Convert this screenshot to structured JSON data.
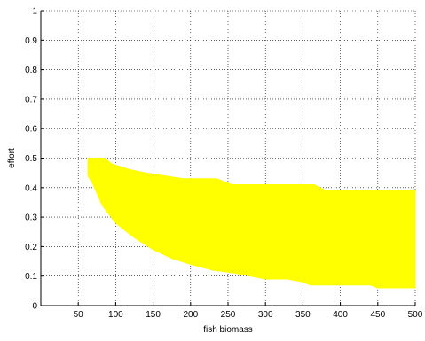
{
  "chart_data": {
    "type": "area",
    "xlabel": "fish biomass",
    "ylabel": "effort",
    "xlim": [
      0,
      500
    ],
    "ylim": [
      0,
      1
    ],
    "xticks": [
      50,
      100,
      150,
      200,
      250,
      300,
      350,
      400,
      450,
      500
    ],
    "yticks": [
      0,
      0.1,
      0.2,
      0.3,
      0.4,
      0.5,
      0.6,
      0.7,
      0.8,
      0.9,
      1
    ],
    "grid": true,
    "fill_color": "#ffff00",
    "region": {
      "upper": [
        {
          "x": 63,
          "y": 0.5
        },
        {
          "x": 85,
          "y": 0.5
        },
        {
          "x": 95,
          "y": 0.48
        },
        {
          "x": 120,
          "y": 0.46
        },
        {
          "x": 140,
          "y": 0.45
        },
        {
          "x": 165,
          "y": 0.44
        },
        {
          "x": 190,
          "y": 0.43
        },
        {
          "x": 235,
          "y": 0.43
        },
        {
          "x": 255,
          "y": 0.41
        },
        {
          "x": 365,
          "y": 0.41
        },
        {
          "x": 380,
          "y": 0.39
        },
        {
          "x": 500,
          "y": 0.39
        }
      ],
      "lower": [
        {
          "x": 63,
          "y": 0.44
        },
        {
          "x": 70,
          "y": 0.41
        },
        {
          "x": 82,
          "y": 0.34
        },
        {
          "x": 100,
          "y": 0.28
        },
        {
          "x": 125,
          "y": 0.23
        },
        {
          "x": 150,
          "y": 0.19
        },
        {
          "x": 175,
          "y": 0.16
        },
        {
          "x": 200,
          "y": 0.14
        },
        {
          "x": 230,
          "y": 0.12
        },
        {
          "x": 260,
          "y": 0.11
        },
        {
          "x": 300,
          "y": 0.09
        },
        {
          "x": 330,
          "y": 0.09
        },
        {
          "x": 350,
          "y": 0.08
        },
        {
          "x": 360,
          "y": 0.07
        },
        {
          "x": 440,
          "y": 0.07
        },
        {
          "x": 450,
          "y": 0.06
        },
        {
          "x": 500,
          "y": 0.06
        }
      ]
    }
  }
}
